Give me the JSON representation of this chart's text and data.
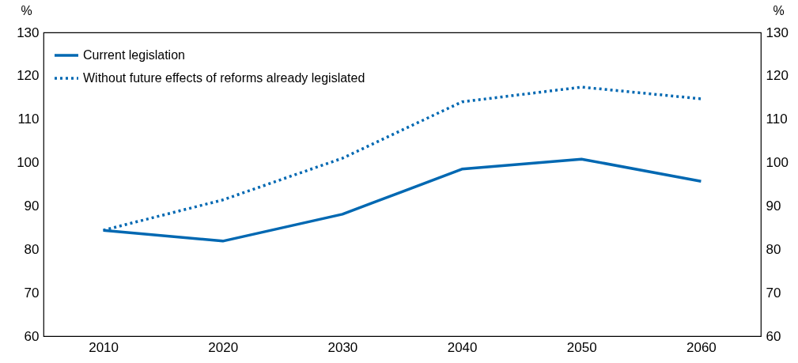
{
  "chart_data": {
    "type": "line",
    "ylabel": "%",
    "y2label": "%",
    "x": [
      2010,
      2020,
      2030,
      2040,
      2050,
      2060
    ],
    "xlim": [
      2005,
      2065
    ],
    "xticks": [
      2010,
      2020,
      2030,
      2040,
      2050,
      2060
    ],
    "ylim": [
      60,
      130
    ],
    "yticks": [
      60,
      70,
      80,
      90,
      100,
      110,
      120,
      130
    ],
    "y2lim": [
      60,
      130
    ],
    "y2ticks": [
      60,
      70,
      80,
      90,
      100,
      110,
      120,
      130
    ],
    "series": [
      {
        "name": "Current legislation",
        "color": "#0068b2",
        "line_style": "solid",
        "values": [
          84.4,
          81.9,
          88.1,
          98.5,
          100.8,
          95.7
        ]
      },
      {
        "name": "Without future effects of reforms already legislated",
        "color": "#0068b2",
        "line_style": "dotted",
        "values": [
          84.4,
          91.4,
          101.0,
          114.0,
          117.4,
          114.7
        ]
      }
    ],
    "grid": false,
    "legend": "top left",
    "marker": "none"
  }
}
